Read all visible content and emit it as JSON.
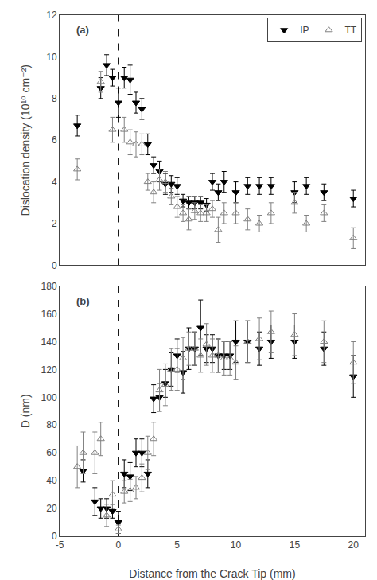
{
  "chart_data": [
    {
      "type": "scatter",
      "ylabel": "Dislocation density (10¹⁰ cm⁻²)",
      "annotations": [
        {
          "text": "(a)"
        }
      ],
      "xlim": [
        -5,
        21
      ],
      "xticks": [
        -5,
        0,
        5,
        10,
        15,
        20
      ],
      "ylim": [
        0,
        12
      ],
      "yticks": [
        0,
        2,
        4,
        6,
        8,
        10,
        12
      ],
      "tick_labels": "y",
      "grid": false,
      "legend": "upper right",
      "vlines": [
        0
      ],
      "series": [
        {
          "name": "IP",
          "color": "black",
          "marker": "triangle-down",
          "x": [
            -3.5,
            -1.5,
            -1.0,
            -0.5,
            0.0,
            0.5,
            1.0,
            1.5,
            2.0,
            2.5,
            3.0,
            3.5,
            4.0,
            4.5,
            5.0,
            5.5,
            6.0,
            6.5,
            7.0,
            7.5,
            8.0,
            8.5,
            9.0,
            10.0,
            11.0,
            12.0,
            13.0,
            15.0,
            16.0,
            17.5,
            20.0
          ],
          "values": [
            6.7,
            8.5,
            9.6,
            9.0,
            7.8,
            9.0,
            8.9,
            7.8,
            7.5,
            5.8,
            4.8,
            4.5,
            3.9,
            3.9,
            3.8,
            3.1,
            3.0,
            3.0,
            3.0,
            2.9,
            4.0,
            3.5,
            4.0,
            3.5,
            3.8,
            3.8,
            3.8,
            3.5,
            3.8,
            3.5,
            3.2
          ],
          "yerr": [
            0.5,
            0.5,
            0.5,
            0.4,
            0.7,
            0.5,
            0.7,
            0.5,
            0.5,
            0.5,
            0.4,
            0.5,
            0.5,
            0.4,
            0.4,
            0.3,
            0.3,
            0.3,
            0.3,
            0.3,
            0.4,
            0.4,
            0.5,
            0.5,
            0.4,
            0.4,
            0.4,
            0.5,
            0.4,
            0.4,
            0.4
          ]
        },
        {
          "name": "TT",
          "color": "gray",
          "marker": "triangle-up-open",
          "x": [
            -3.5,
            -1.5,
            -0.5,
            0.5,
            1.0,
            1.5,
            2.0,
            2.5,
            3.0,
            3.5,
            4.0,
            4.5,
            5.0,
            5.5,
            6.0,
            6.5,
            7.0,
            7.5,
            8.0,
            8.5,
            9.0,
            10.0,
            11.0,
            12.0,
            13.0,
            15.0,
            16.0,
            17.5,
            20.0
          ],
          "values": [
            4.6,
            8.8,
            6.5,
            6.5,
            5.9,
            5.8,
            5.8,
            4.0,
            3.5,
            4.1,
            4.0,
            3.3,
            2.8,
            2.5,
            2.2,
            2.6,
            2.5,
            2.5,
            2.7,
            1.7,
            2.5,
            2.5,
            2.2,
            2.0,
            2.5,
            3.0,
            2.0,
            2.5,
            1.3
          ],
          "yerr": [
            0.5,
            0.5,
            0.6,
            0.6,
            0.6,
            0.6,
            0.5,
            0.4,
            0.5,
            0.5,
            0.5,
            0.4,
            0.5,
            0.4,
            0.5,
            0.4,
            0.4,
            0.4,
            0.4,
            0.6,
            0.5,
            0.5,
            0.5,
            0.4,
            0.5,
            0.5,
            0.4,
            0.4,
            0.5
          ]
        }
      ]
    },
    {
      "type": "scatter",
      "xlabel": "Distance from the Crack Tip (mm)",
      "ylabel": "D (nm)",
      "annotations": [
        {
          "text": "(b)"
        }
      ],
      "xlim": [
        -5,
        21
      ],
      "xticks": [
        -5,
        0,
        5,
        10,
        15,
        20
      ],
      "ylim": [
        0,
        180
      ],
      "yticks": [
        0,
        20,
        40,
        60,
        80,
        100,
        120,
        140,
        160,
        180
      ],
      "grid": false,
      "vlines": [
        0
      ],
      "series": [
        {
          "name": "IP",
          "color": "black",
          "marker": "triangle-down",
          "x": [
            -3.0,
            -2.0,
            -1.5,
            -1.0,
            -0.5,
            0.0,
            0.5,
            1.0,
            1.5,
            2.0,
            2.5,
            3.0,
            3.5,
            4.0,
            4.5,
            5.0,
            5.5,
            6.0,
            6.5,
            7.0,
            7.5,
            8.0,
            8.5,
            9.0,
            9.5,
            10.0,
            11.0,
            12.0,
            13.0,
            15.0,
            17.5,
            20.0
          ],
          "values": [
            47,
            25,
            20,
            20,
            18,
            10,
            45,
            43,
            60,
            60,
            45,
            99,
            100,
            110,
            120,
            130,
            118,
            135,
            135,
            150,
            135,
            135,
            130,
            130,
            130,
            140,
            140,
            135,
            140,
            140,
            135,
            115
          ],
          "yerr": [
            8,
            10,
            7,
            7,
            5,
            8,
            10,
            10,
            10,
            10,
            10,
            10,
            10,
            10,
            12,
            12,
            15,
            15,
            12,
            20,
            10,
            10,
            12,
            10,
            10,
            15,
            15,
            12,
            12,
            12,
            12,
            15
          ]
        },
        {
          "name": "TT",
          "color": "gray",
          "marker": "triangle-up-open",
          "x": [
            -3.5,
            -3.0,
            -2.0,
            -1.5,
            -1.0,
            -0.5,
            0.0,
            0.5,
            1.0,
            1.5,
            2.0,
            2.5,
            3.0,
            3.5,
            4.0,
            4.5,
            5.0,
            5.5,
            6.0,
            6.5,
            7.0,
            7.5,
            8.0,
            8.5,
            9.0,
            9.5,
            10.0,
            11.0,
            12.0,
            13.0,
            15.0,
            17.5,
            20.0
          ],
          "values": [
            50,
            60,
            60,
            70,
            15,
            30,
            5,
            32,
            33,
            35,
            42,
            60,
            70,
            105,
            109,
            120,
            120,
            128,
            135,
            135,
            130,
            138,
            130,
            130,
            128,
            128,
            125,
            140,
            142,
            147,
            145,
            140,
            125
          ],
          "yerr": [
            15,
            15,
            15,
            12,
            8,
            10,
            3,
            8,
            8,
            8,
            10,
            12,
            12,
            15,
            15,
            15,
            15,
            15,
            12,
            12,
            12,
            15,
            12,
            12,
            12,
            12,
            12,
            15,
            15,
            15,
            15,
            15,
            15
          ]
        }
      ]
    }
  ]
}
